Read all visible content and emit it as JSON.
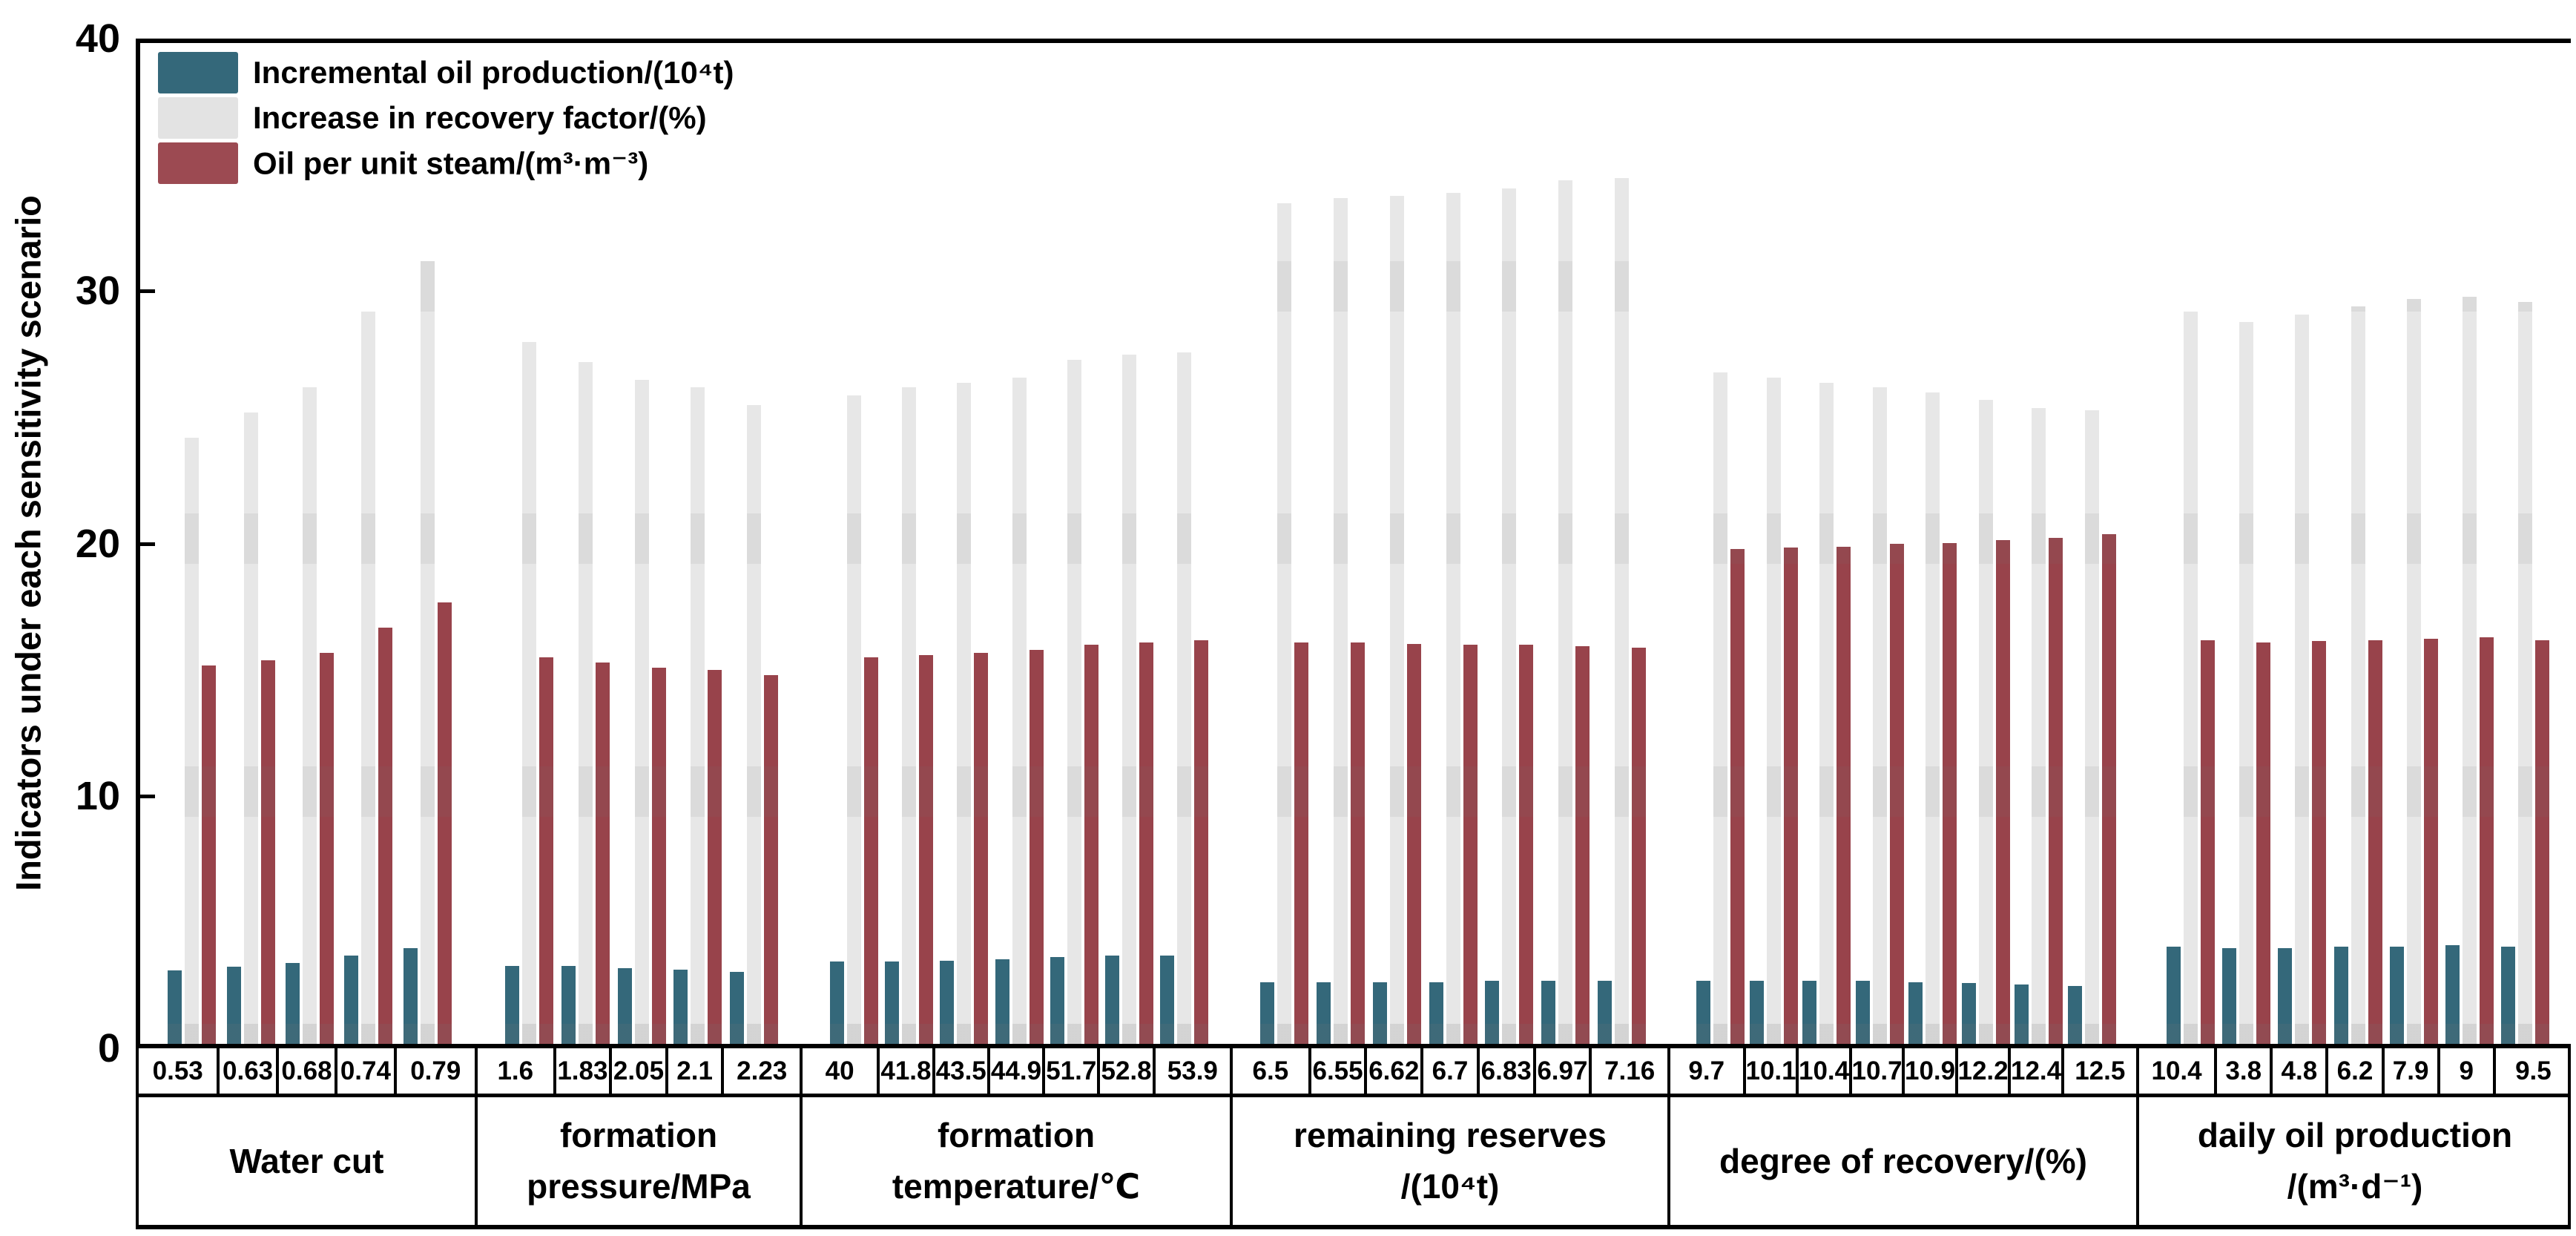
{
  "chart_data": {
    "type": "bar",
    "title": "",
    "ylabel": "Indicators under each sensitivity scenario",
    "xlabel": "",
    "ylim": [
      0,
      40
    ],
    "yticks": [
      0,
      10,
      20,
      30,
      40
    ],
    "grid": false,
    "legend_position": "top-left-inside",
    "series_meta": [
      {
        "name": "Incremental oil production/(10⁴t)",
        "color": "#34687a"
      },
      {
        "name": "Increase in recovery factor/(%)",
        "color": "#e7e7e7"
      },
      {
        "name": "Oil per unit steam/(m³·m⁻³)",
        "color": "#98434b"
      }
    ],
    "legend_series_colors": {
      "incremental": "#34687a",
      "recovery": "#e3e3e3",
      "oil_per_unit_steam": "#9c4a52"
    },
    "groups": [
      {
        "label_lines": [
          "Water cut"
        ],
        "categories": [
          "0.53",
          "0.63",
          "0.68",
          "0.74",
          "0.79"
        ],
        "series": [
          [
            2.9,
            3.05,
            3.2,
            3.5,
            3.8
          ],
          [
            24,
            25,
            26,
            29,
            31
          ],
          [
            15,
            15.2,
            15.5,
            16.5,
            17.5
          ]
        ]
      },
      {
        "label_lines": [
          "formation",
          "pressure/MPa"
        ],
        "categories": [
          "1.6",
          "1.83",
          "2.05",
          "2.1",
          "2.23"
        ],
        "series": [
          [
            3.1,
            3.1,
            3.0,
            2.95,
            2.85
          ],
          [
            27.8,
            27,
            26.3,
            26,
            25.3
          ],
          [
            15.3,
            15.1,
            14.9,
            14.8,
            14.6
          ]
        ]
      },
      {
        "label_lines": [
          "formation",
          "temperature/℃"
        ],
        "categories": [
          "40",
          "41.8",
          "43.5",
          "44.9",
          "51.7",
          "52.8",
          "53.9"
        ],
        "series": [
          [
            3.25,
            3.25,
            3.3,
            3.35,
            3.45,
            3.5,
            3.5
          ],
          [
            25.7,
            26,
            26.2,
            26.4,
            27.1,
            27.3,
            27.4
          ],
          [
            15.3,
            15.4,
            15.5,
            15.6,
            15.8,
            15.9,
            16
          ]
        ]
      },
      {
        "label_lines": [
          "remaining reserves",
          "/(10⁴t)"
        ],
        "categories": [
          "6.5",
          "6.55",
          "6.62",
          "6.7",
          "6.83",
          "6.97",
          "7.16"
        ],
        "series": [
          [
            2.45,
            2.45,
            2.45,
            2.45,
            2.5,
            2.5,
            2.5
          ],
          [
            33.3,
            33.5,
            33.6,
            33.7,
            33.9,
            34.2,
            34.3
          ],
          [
            15.9,
            15.9,
            15.85,
            15.8,
            15.8,
            15.75,
            15.7
          ]
        ]
      },
      {
        "label_lines": [
          "degree of recovery/(%)"
        ],
        "categories": [
          "9.7",
          "10.1",
          "10.4",
          "10.7",
          "10.9",
          "12.2",
          "12.4",
          "12.5"
        ],
        "series": [
          [
            2.5,
            2.5,
            2.5,
            2.5,
            2.45,
            2.4,
            2.35,
            2.3
          ],
          [
            26.6,
            26.4,
            26.2,
            26,
            25.8,
            25.5,
            25.2,
            25.1
          ],
          [
            19.6,
            19.65,
            19.7,
            19.8,
            19.85,
            19.95,
            20.05,
            20.2
          ]
        ]
      },
      {
        "label_lines": [
          "daily oil production",
          "/(m³·d⁻¹)"
        ],
        "categories": [
          "10.4",
          "3.8",
          "4.8",
          "6.2",
          "7.9",
          "9",
          "9.5"
        ],
        "series": [
          [
            3.85,
            3.8,
            3.8,
            3.85,
            3.85,
            3.9,
            3.85
          ],
          [
            29,
            28.6,
            28.9,
            29.2,
            29.5,
            29.6,
            29.4
          ],
          [
            16,
            15.9,
            15.95,
            16,
            16.05,
            16.1,
            16
          ]
        ]
      }
    ]
  }
}
